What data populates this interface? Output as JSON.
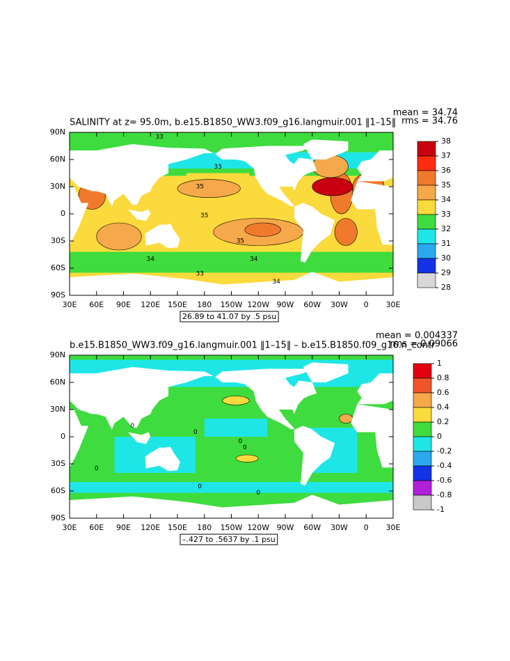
{
  "panels": [
    {
      "title": "SALINITY at z=  95.0m, b.e15.B1850_WW3.f09_g16.langmuir.001 ‖1–15‖",
      "mean": "mean = 34.74",
      "rms": "rms = 34.76",
      "range_note": "26.89 to 41.07 by .5 psu",
      "x_tick_labels": [
        "30E",
        "60E",
        "90E",
        "120E",
        "150E",
        "180",
        "150W",
        "120W",
        "90W",
        "60W",
        "30W",
        "0",
        "30E"
      ],
      "y_tick_labels": [
        "90N",
        "60N",
        "30N",
        "0",
        "30S",
        "60S",
        "90S"
      ],
      "contour_labels": [
        "35",
        "35",
        "35",
        "34",
        "34",
        "34",
        "33",
        "33",
        "33"
      ],
      "colorbar": {
        "levels": [
          38,
          37,
          36,
          35,
          34,
          33,
          32,
          31,
          30,
          29,
          28
        ],
        "colors": [
          "#c8000f",
          "#ff2a10",
          "#f07a2c",
          "#f5a94a",
          "#fada3c",
          "#3edc3e",
          "#1fe6e6",
          "#2aa8f0",
          "#1432e6",
          "#d8d8d8"
        ]
      }
    },
    {
      "title": "b.e15.B1850_WW3.f09_g16.langmuir.001 ‖1–15‖ – b.e15.B1850.f09_g16.n_contr",
      "mean": "mean = 0.004337",
      "rms": "rms = 0.09066",
      "range_note": "–.427 to .5637 by .1 psu",
      "x_tick_labels": [
        "30E",
        "60E",
        "90E",
        "120E",
        "150E",
        "180",
        "150W",
        "120W",
        "90W",
        "60W",
        "30W",
        "0",
        "30E"
      ],
      "y_tick_labels": [
        "90N",
        "60N",
        "30N",
        "0",
        "30S",
        "60S",
        "90S"
      ],
      "contour_labels": [
        "0",
        "0",
        "0",
        "0",
        "0",
        "0",
        "0"
      ],
      "colorbar": {
        "levels": [
          1,
          0.8,
          0.6,
          0.4,
          0.2,
          0,
          -0.2,
          -0.4,
          -0.6,
          -0.8,
          -1
        ],
        "colors": [
          "#e0000f",
          "#f0552a",
          "#f5a94a",
          "#fada3c",
          "#3edc3e",
          "#1fe6e6",
          "#2aa8f0",
          "#1432e6",
          "#b020d8",
          "#c8c8c8"
        ]
      }
    }
  ]
}
